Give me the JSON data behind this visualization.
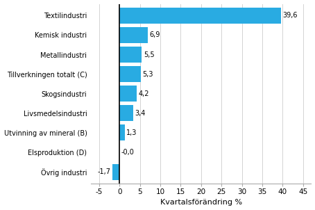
{
  "categories": [
    "Övrig industri",
    "Elsproduktion (D)",
    "Utvinning av mineral (B)",
    "Livsmedelsindustri",
    "Skogsindustri",
    "Tillverkningen totalt (C)",
    "Metallindustri",
    "Kemisk industri",
    "Textilindustri"
  ],
  "values": [
    -1.7,
    0.0,
    1.3,
    3.4,
    4.2,
    5.3,
    5.5,
    6.9,
    39.6
  ],
  "labels": [
    "-1,7",
    "-0,0",
    "1,3",
    "3,4",
    "4,2",
    "5,3",
    "5,5",
    "6,9",
    "39,6"
  ],
  "bar_color": "#29abe2",
  "xlabel": "Kvartalsförändring %",
  "xlim": [
    -7,
    47
  ],
  "xticks": [
    -5,
    0,
    5,
    10,
    15,
    20,
    25,
    30,
    35,
    40,
    45
  ],
  "figsize": [
    4.54,
    3.02
  ],
  "dpi": 100,
  "bar_height": 0.82,
  "label_fontsize": 7.0,
  "xlabel_fontsize": 8,
  "ytick_fontsize": 7.0,
  "xtick_fontsize": 7.5,
  "grid_color": "#cccccc",
  "spine_color": "#aaaaaa"
}
